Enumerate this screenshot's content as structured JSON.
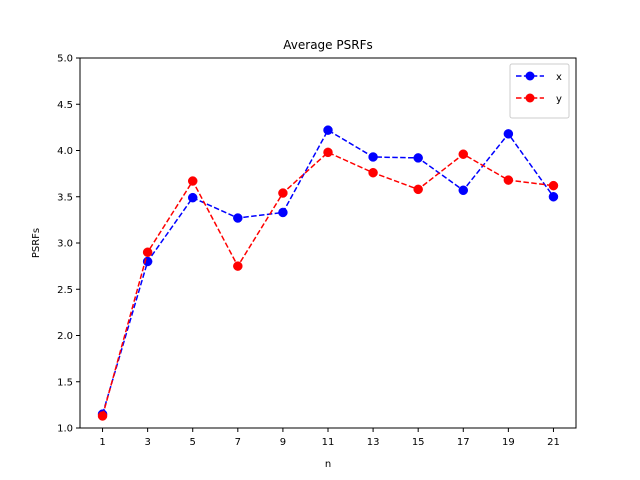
{
  "chart_data": {
    "type": "line",
    "title": "Average PSRFs",
    "xlabel": "n",
    "ylabel": "PSRFs",
    "x": [
      1,
      3,
      5,
      7,
      9,
      11,
      13,
      15,
      17,
      19,
      21
    ],
    "xticks": [
      "1",
      "3",
      "5",
      "7",
      "9",
      "11",
      "13",
      "15",
      "17",
      "19",
      "21"
    ],
    "yticks": [
      "1.0",
      "1.5",
      "2.0",
      "2.5",
      "3.0",
      "3.5",
      "4.0",
      "4.5",
      "5.0"
    ],
    "xlim": [
      0.0,
      22.0
    ],
    "ylim": [
      1.0,
      5.0
    ],
    "grid": false,
    "legend_position": "top-right",
    "series": [
      {
        "name": "x",
        "color": "#0000ff",
        "line_style": "dashed",
        "marker": "circle",
        "values": [
          1.15,
          2.8,
          3.49,
          3.27,
          3.33,
          4.22,
          3.93,
          3.92,
          3.57,
          4.18,
          3.5
        ]
      },
      {
        "name": "y",
        "color": "#ff0000",
        "line_style": "dashed",
        "marker": "circle",
        "values": [
          1.13,
          2.9,
          3.67,
          2.75,
          3.54,
          3.98,
          3.76,
          3.58,
          3.96,
          3.68,
          3.62
        ]
      }
    ]
  }
}
